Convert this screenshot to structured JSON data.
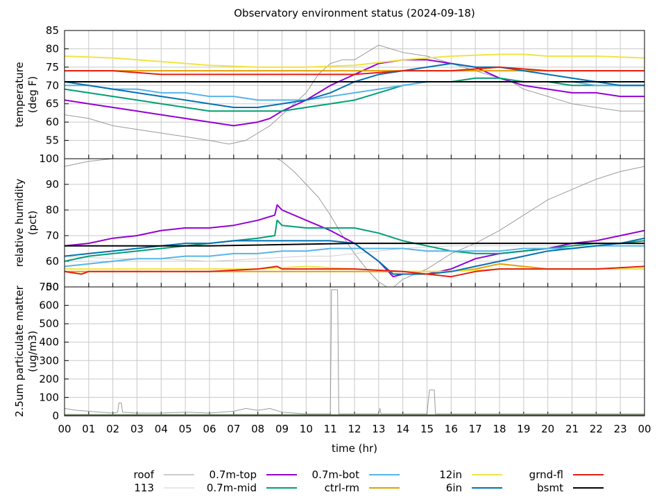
{
  "title": "Observatory environment status (2024-09-18)",
  "xlabel": "time (hr)",
  "x_ticks": [
    "00",
    "01",
    "02",
    "03",
    "04",
    "05",
    "06",
    "07",
    "08",
    "09",
    "10",
    "11",
    "12",
    "13",
    "14",
    "15",
    "16",
    "17",
    "18",
    "19",
    "20",
    "21",
    "22",
    "23",
    "00"
  ],
  "colors": {
    "roof": "#9a9a9a",
    "113": "#cfcfcf",
    "0.7m-top": "#9400d3",
    "0.7m-mid": "#009e73",
    "0.7m-bot": "#56b4e9",
    "ctrl-rm": "#e69f00",
    "12in": "#f0e442",
    "6in": "#0072b2",
    "grnd-fl": "#e51e10",
    "bsmt": "#000000"
  },
  "legend": [
    {
      "name": "roof",
      "color": "#9a9a9a"
    },
    {
      "name": "113",
      "color": "#cfcfcf"
    },
    {
      "name": "0.7m-top",
      "color": "#9400d3"
    },
    {
      "name": "0.7m-mid",
      "color": "#009e73"
    },
    {
      "name": "0.7m-bot",
      "color": "#56b4e9"
    },
    {
      "name": "ctrl-rm",
      "color": "#e69f00"
    },
    {
      "name": "12in",
      "color": "#f0e442"
    },
    {
      "name": "6in",
      "color": "#0072b2"
    },
    {
      "name": "grnd-fl",
      "color": "#e51e10"
    },
    {
      "name": "bsmt",
      "color": "#000000"
    }
  ],
  "chart_data": [
    {
      "type": "line",
      "ylabel": "temperature\n(deg F)",
      "ylim": [
        50,
        85
      ],
      "y_ticks": [
        55,
        60,
        65,
        70,
        75,
        80,
        85
      ],
      "xlim": [
        0,
        24
      ],
      "grid": true,
      "series": [
        {
          "name": "roof",
          "x": [
            0,
            1,
            2,
            3,
            4,
            5,
            6,
            6.8,
            7.5,
            8,
            8.5,
            9,
            10,
            10.5,
            11,
            11.5,
            12,
            12.5,
            13,
            13.5,
            14,
            15,
            16,
            17,
            18,
            18.5,
            19,
            20,
            21,
            22,
            23,
            24
          ],
          "y": [
            62,
            61,
            59,
            58,
            57,
            56,
            55,
            54,
            55,
            57,
            59,
            62,
            68,
            73,
            76,
            77,
            77,
            79,
            81,
            80,
            79,
            78,
            76,
            74,
            72,
            71,
            69,
            67,
            65,
            64,
            63,
            63
          ]
        },
        {
          "name": "0.7m-top",
          "x": [
            0,
            1,
            2,
            3,
            4,
            5,
            6,
            7,
            8,
            8.5,
            9,
            10,
            11,
            12,
            13,
            14,
            15,
            16,
            17,
            18,
            19,
            20,
            21,
            22,
            23,
            24
          ],
          "y": [
            66,
            65,
            64,
            63,
            62,
            61,
            60,
            59,
            60,
            61,
            63,
            66,
            70,
            73,
            76,
            77,
            77,
            76,
            75,
            72,
            70,
            69,
            68,
            68,
            67,
            67
          ]
        },
        {
          "name": "0.7m-mid",
          "x": [
            0,
            1,
            2,
            3,
            4,
            5,
            6,
            7,
            8,
            9,
            10,
            11,
            12,
            13,
            14,
            15,
            16,
            17,
            18,
            19,
            20,
            21,
            22,
            23,
            24
          ],
          "y": [
            69,
            68,
            67,
            66,
            65,
            64,
            63,
            63,
            63,
            63,
            64,
            65,
            66,
            68,
            70,
            71,
            71,
            72,
            72,
            71,
            71,
            70,
            70,
            70,
            70
          ]
        },
        {
          "name": "0.7m-bot",
          "x": [
            0,
            1,
            2,
            3,
            4,
            5,
            6,
            7,
            8,
            9,
            10,
            11,
            12,
            13,
            14,
            15,
            16,
            17,
            18,
            19,
            20,
            21,
            22,
            23,
            24
          ],
          "y": [
            70,
            70,
            69,
            69,
            68,
            68,
            67,
            67,
            66,
            66,
            66,
            67,
            68,
            69,
            70,
            71,
            71,
            71,
            71,
            71,
            71,
            71,
            70,
            70,
            70
          ]
        },
        {
          "name": "ctrl-rm",
          "x": [
            0,
            2,
            4,
            6,
            8,
            10,
            12,
            14,
            16,
            18,
            20,
            22,
            24
          ],
          "y": [
            74,
            74,
            74,
            74,
            74,
            74,
            74,
            74,
            74,
            74,
            74,
            74,
            74
          ]
        },
        {
          "name": "12in",
          "x": [
            0,
            2,
            4,
            6,
            8,
            9,
            10,
            12,
            14,
            16,
            18,
            19,
            20,
            22,
            24
          ],
          "y": [
            78,
            77.5,
            76.5,
            75.5,
            75,
            75,
            75,
            75.5,
            77,
            78,
            78.5,
            78.5,
            78,
            78,
            77.5
          ]
        },
        {
          "name": "6in",
          "x": [
            0,
            1,
            2,
            3,
            4,
            5,
            6,
            7,
            8,
            9,
            10,
            11,
            12,
            13,
            14,
            15,
            16,
            17,
            18,
            19,
            20,
            21,
            22,
            23,
            24
          ],
          "y": [
            71,
            70,
            69,
            68,
            67,
            66,
            65,
            64,
            64,
            65,
            66,
            68,
            71,
            73,
            74,
            75,
            76,
            75,
            75,
            74,
            73,
            72,
            71,
            70,
            70
          ]
        },
        {
          "name": "grnd-fl",
          "x": [
            0,
            2,
            4,
            6,
            8,
            10,
            12,
            14,
            16,
            18,
            20,
            22,
            24
          ],
          "y": [
            74,
            74,
            73,
            73,
            73,
            73,
            73,
            74,
            74,
            75,
            74,
            74,
            74
          ]
        },
        {
          "name": "bsmt",
          "x": [
            0,
            6,
            12,
            18,
            24
          ],
          "y": [
            71,
            71,
            71,
            71,
            71
          ]
        }
      ]
    },
    {
      "type": "line",
      "ylabel": "relative humidity\n(pct)",
      "ylim": [
        50,
        100
      ],
      "y_ticks": [
        50,
        60,
        70,
        80,
        90,
        100
      ],
      "xlim": [
        0,
        24
      ],
      "grid": true,
      "series": [
        {
          "name": "roof",
          "x": [
            0,
            0.5,
            1,
            2,
            8,
            8.8,
            9,
            9.5,
            10,
            10.5,
            11,
            11.5,
            12,
            12.5,
            13,
            13.5,
            14,
            14.5,
            15,
            15.5,
            16,
            17,
            18,
            19,
            20,
            21,
            22,
            23,
            24
          ],
          "y": [
            97,
            98,
            99,
            100,
            100,
            100,
            99,
            95,
            90,
            85,
            78,
            70,
            63,
            57,
            52,
            49,
            53,
            55,
            57,
            60,
            63,
            67,
            72,
            78,
            84,
            88,
            92,
            95,
            97
          ]
        },
        {
          "name": "113",
          "x": [
            0,
            2,
            4,
            6,
            8,
            10,
            11,
            12,
            13,
            14,
            16,
            18,
            20,
            22,
            24
          ],
          "y": [
            62,
            61,
            61,
            60,
            61,
            62,
            62,
            63,
            64,
            65,
            66,
            66,
            66,
            66,
            66
          ]
        },
        {
          "name": "0.7m-top",
          "x": [
            0,
            1,
            2,
            3,
            4,
            5,
            6,
            7,
            8,
            8.7,
            8.8,
            9,
            10,
            11,
            12,
            13,
            13.6,
            14,
            15,
            16,
            17,
            18,
            19,
            20,
            21,
            22,
            23,
            24
          ],
          "y": [
            66,
            67,
            69,
            70,
            72,
            73,
            73,
            74,
            76,
            78,
            82,
            80,
            76,
            72,
            67,
            60,
            54,
            55,
            55,
            57,
            61,
            63,
            64,
            65,
            67,
            68,
            70,
            72
          ]
        },
        {
          "name": "0.7m-mid",
          "x": [
            0,
            1,
            2,
            3,
            4,
            5,
            6,
            7,
            8,
            8.7,
            8.8,
            9,
            10,
            11,
            12,
            13,
            14,
            15,
            16,
            17,
            18,
            19,
            20,
            21,
            22,
            23,
            24
          ],
          "y": [
            60,
            62,
            63,
            64,
            65,
            66,
            67,
            68,
            69,
            70,
            76,
            74,
            73,
            73,
            73,
            71,
            68,
            66,
            64,
            63,
            63,
            64,
            65,
            66,
            67,
            67,
            68
          ]
        },
        {
          "name": "0.7m-bot",
          "x": [
            0,
            1,
            2,
            3,
            4,
            5,
            6,
            7,
            8,
            9,
            10,
            11,
            12,
            13,
            14,
            15,
            16,
            17,
            18,
            19,
            20,
            21,
            22,
            23,
            24
          ],
          "y": [
            58,
            59,
            60,
            61,
            61,
            62,
            62,
            63,
            63,
            64,
            64,
            65,
            65,
            65,
            65,
            64,
            64,
            64,
            64,
            65,
            65,
            65,
            66,
            66,
            66
          ]
        },
        {
          "name": "ctrl-rm",
          "x": [
            0,
            2,
            4,
            6,
            8,
            10,
            12,
            14,
            16,
            17,
            18,
            20,
            22,
            24
          ],
          "y": [
            56,
            56,
            56,
            56,
            56,
            56,
            56,
            56,
            56,
            57,
            59,
            57,
            57,
            57
          ]
        },
        {
          "name": "12in",
          "x": [
            0,
            2,
            4,
            6,
            8,
            10,
            12,
            14,
            16,
            18,
            20,
            22,
            24
          ],
          "y": [
            57,
            57,
            57,
            57,
            57,
            58,
            57,
            56,
            56,
            57,
            57,
            57,
            57
          ]
        },
        {
          "name": "6in",
          "x": [
            0,
            1,
            2,
            3,
            4,
            5,
            6,
            7,
            8,
            9,
            10,
            11,
            12,
            13,
            13.6,
            14,
            15,
            16,
            17,
            18,
            19,
            20,
            21,
            22,
            23,
            24
          ],
          "y": [
            62,
            63,
            64,
            65,
            66,
            67,
            67,
            68,
            68,
            68,
            68,
            68,
            67,
            60,
            55,
            55,
            55,
            56,
            58,
            60,
            62,
            64,
            65,
            66,
            67,
            69
          ]
        },
        {
          "name": "grnd-fl",
          "x": [
            0,
            0.7,
            1,
            2,
            4,
            6,
            8,
            8.8,
            9,
            10,
            12,
            14,
            15,
            16,
            17,
            18,
            20,
            22,
            24
          ],
          "y": [
            56,
            55,
            56,
            56,
            56,
            56,
            57,
            58,
            57,
            57,
            57,
            56,
            55,
            54,
            56,
            57,
            57,
            57,
            58
          ]
        },
        {
          "name": "bsmt",
          "x": [
            0,
            6,
            12,
            18,
            24
          ],
          "y": [
            66,
            66,
            67,
            67,
            67
          ]
        }
      ]
    },
    {
      "type": "line",
      "ylabel": "2.5um particulate matter\n(ug/m3)",
      "ylim": [
        0,
        700
      ],
      "y_ticks": [
        0,
        100,
        200,
        300,
        400,
        500,
        600,
        700
      ],
      "xlim": [
        0,
        24
      ],
      "grid": true,
      "series": [
        {
          "name": "roof",
          "x": [
            0,
            0.5,
            1,
            1.5,
            2,
            2.2,
            2.25,
            2.35,
            2.4,
            3,
            4,
            5,
            6,
            7,
            7.5,
            8,
            8.5,
            9,
            10,
            11,
            11.05,
            11.1,
            11.3,
            11.35,
            11.4,
            12,
            13,
            13.05,
            13.1,
            14,
            15,
            15.1,
            15.15,
            15.3,
            15.35,
            16,
            18,
            20,
            22,
            24
          ],
          "y": [
            40,
            30,
            25,
            20,
            15,
            20,
            70,
            70,
            20,
            15,
            15,
            20,
            15,
            25,
            40,
            30,
            40,
            20,
            10,
            10,
            685,
            685,
            685,
            10,
            10,
            10,
            10,
            40,
            10,
            10,
            10,
            140,
            140,
            140,
            10,
            10,
            10,
            10,
            10,
            10
          ]
        },
        {
          "name": "grnd-fl",
          "x": [
            0,
            4,
            8,
            12,
            16,
            20,
            24
          ],
          "y": [
            5,
            5,
            5,
            5,
            5,
            5,
            5
          ]
        },
        {
          "name": "0.7m-mid",
          "x": [
            0,
            12,
            24
          ],
          "y": [
            3,
            3,
            3
          ]
        }
      ]
    }
  ]
}
